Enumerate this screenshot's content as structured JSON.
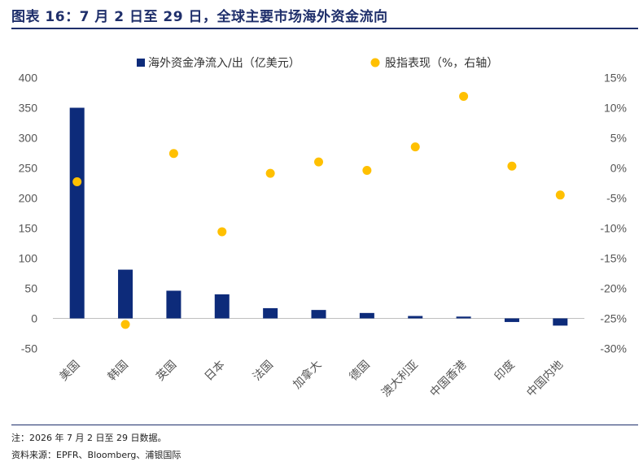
{
  "header": {
    "title": "图表 16：7 月 2 日至 29 日，全球主要市场海外资金流向"
  },
  "footer": {
    "note": "注：2026 年 7 月 2 日至 29 日数据。",
    "source": "资料来源：EPFR、Bloomberg、浦银国际"
  },
  "colors": {
    "bar": "#0d2b7a",
    "dot": "#ffc000",
    "title": "#1f2f6b"
  },
  "chart_data": {
    "type": "bar",
    "categories": [
      "美国",
      "韩国",
      "英国",
      "日本",
      "法国",
      "加拿大",
      "德国",
      "澳大利亚",
      "中国香港",
      "印度",
      "中国内地"
    ],
    "series": [
      {
        "name": "海外资金净流入/出（亿美元）",
        "type": "bar",
        "axis": "left",
        "values": [
          350,
          81,
          46,
          40,
          17,
          14,
          9,
          4,
          3,
          -6,
          -12
        ]
      },
      {
        "name": "股指表现（%，右轴）",
        "type": "scatter",
        "axis": "right",
        "values": [
          -2.3,
          -26.0,
          2.4,
          -10.6,
          -0.9,
          1.0,
          -0.4,
          3.5,
          11.9,
          0.3,
          -4.5
        ]
      }
    ],
    "left_axis": {
      "ylim": [
        -50,
        400
      ],
      "ticks": [
        "-50",
        "0",
        "50",
        "100",
        "150",
        "200",
        "250",
        "300",
        "350",
        "400"
      ]
    },
    "right_axis": {
      "ylim": [
        -30,
        15
      ],
      "ticks": [
        "-30%",
        "-25%",
        "-20%",
        "-15%",
        "-10%",
        "-5%",
        "0%",
        "5%",
        "10%",
        "15%"
      ]
    },
    "legend_position": "top",
    "grid": false
  }
}
